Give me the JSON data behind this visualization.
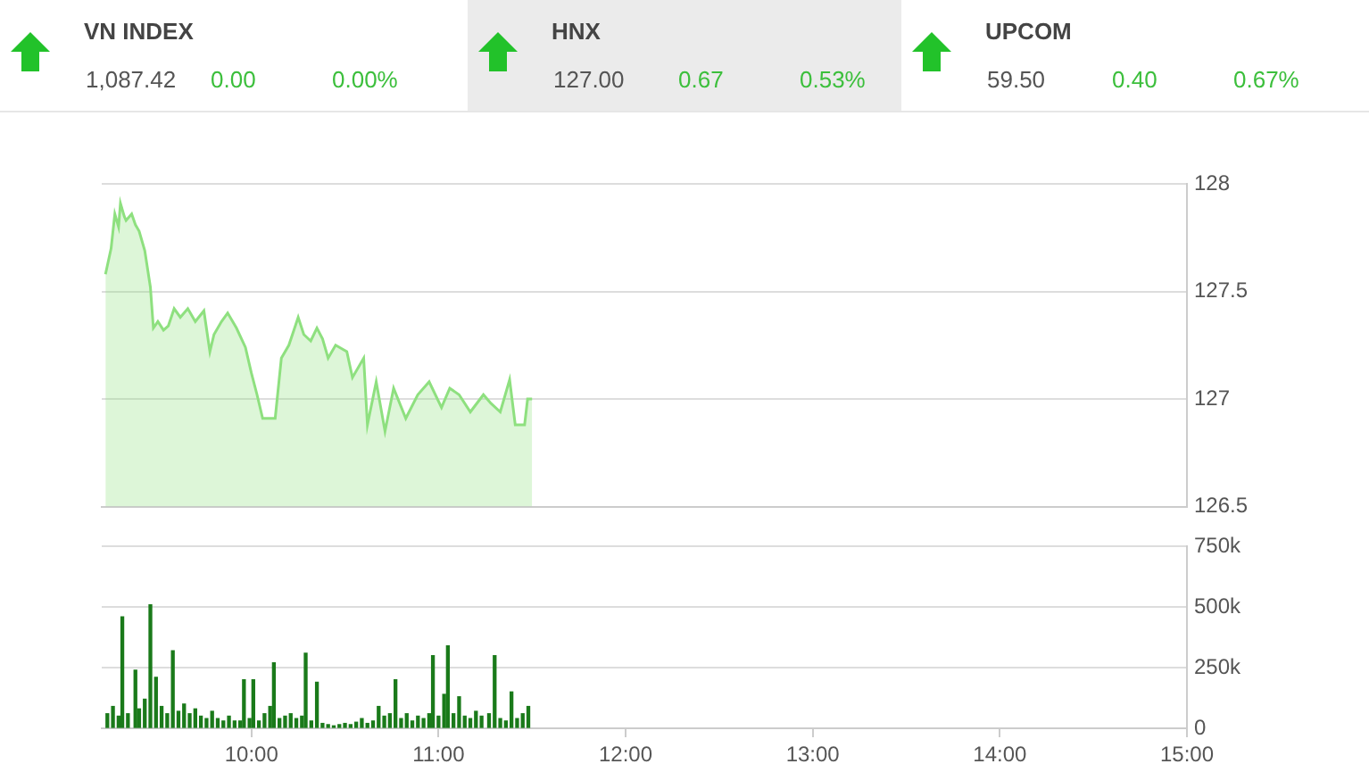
{
  "chart_data": [
    {
      "type": "other",
      "title": "VN INDEX",
      "annotations": [
        "1,087.42",
        "0.00",
        "0.00%"
      ]
    },
    {
      "type": "other",
      "title": "HNX",
      "annotations": [
        "127.00",
        "0.67",
        "0.53%"
      ]
    },
    {
      "type": "other",
      "title": "UPCOM",
      "annotations": [
        "59.50",
        "0.40",
        "0.67%"
      ]
    },
    {
      "type": "area",
      "x": [
        9.22,
        9.25,
        9.27,
        9.29,
        9.3,
        9.32,
        9.33,
        9.36,
        9.38,
        9.4,
        9.43,
        9.46,
        9.476,
        9.5,
        9.53,
        9.556,
        9.587,
        9.62,
        9.66,
        9.7,
        9.746,
        9.778,
        9.8,
        9.84,
        9.873,
        9.92,
        9.968,
        10.0,
        10.03,
        10.06,
        10.127,
        10.16,
        10.2,
        10.25,
        10.28,
        10.317,
        10.35,
        10.38,
        10.41,
        10.45,
        10.51,
        10.54,
        10.6,
        10.62,
        10.667,
        10.714,
        10.76,
        10.825,
        10.889,
        10.95,
        11.016,
        11.06,
        11.11,
        11.17,
        11.24,
        11.28,
        11.33,
        11.38,
        11.41,
        11.46,
        11.476,
        11.5
      ],
      "values": [
        127.58,
        127.7,
        127.86,
        127.8,
        127.91,
        127.85,
        127.83,
        127.86,
        127.81,
        127.78,
        127.69,
        127.52,
        127.33,
        127.36,
        127.32,
        127.34,
        127.42,
        127.38,
        127.42,
        127.36,
        127.41,
        127.22,
        127.3,
        127.36,
        127.4,
        127.33,
        127.24,
        127.12,
        127.02,
        126.91,
        126.91,
        127.19,
        127.25,
        127.38,
        127.3,
        127.27,
        127.33,
        127.28,
        127.19,
        127.25,
        127.22,
        127.1,
        127.19,
        126.88,
        127.08,
        126.85,
        127.05,
        126.91,
        127.02,
        127.08,
        126.96,
        127.05,
        127.02,
        126.94,
        127.02,
        126.98,
        126.94,
        127.09,
        126.88,
        126.88,
        127.0,
        127.0
      ],
      "color": "#8ee07f",
      "xlim": [
        9.2,
        15
      ],
      "ylim": [
        126.5,
        128
      ],
      "yticks": [
        126.5,
        127,
        127.5,
        128
      ],
      "grid": "y",
      "tick_labels": "y"
    },
    {
      "type": "bar",
      "x": [
        9.23,
        9.26,
        9.29,
        9.31,
        9.34,
        9.38,
        9.4,
        9.43,
        9.46,
        9.49,
        9.52,
        9.55,
        9.58,
        9.61,
        9.64,
        9.67,
        9.7,
        9.73,
        9.76,
        9.79,
        9.82,
        9.85,
        9.88,
        9.91,
        9.94,
        9.96,
        9.99,
        10.01,
        10.04,
        10.07,
        10.1,
        10.12,
        10.15,
        10.18,
        10.21,
        10.24,
        10.27,
        10.29,
        10.32,
        10.35,
        10.38,
        10.41,
        10.44,
        10.47,
        10.5,
        10.53,
        10.56,
        10.59,
        10.62,
        10.65,
        10.68,
        10.71,
        10.74,
        10.77,
        10.8,
        10.83,
        10.86,
        10.89,
        10.92,
        10.95,
        10.97,
        11.0,
        11.03,
        11.05,
        11.08,
        11.11,
        11.14,
        11.17,
        11.2,
        11.23,
        11.27,
        11.3,
        11.33,
        11.36,
        11.39,
        11.42,
        11.45,
        11.48
      ],
      "values": [
        60000,
        90000,
        50000,
        460000,
        60000,
        240000,
        80000,
        120000,
        510000,
        210000,
        90000,
        60000,
        320000,
        70000,
        100000,
        60000,
        80000,
        50000,
        40000,
        70000,
        40000,
        30000,
        50000,
        30000,
        30000,
        200000,
        40000,
        200000,
        30000,
        60000,
        90000,
        270000,
        40000,
        50000,
        60000,
        40000,
        50000,
        310000,
        30000,
        190000,
        20000,
        15000,
        10000,
        15000,
        20000,
        15000,
        25000,
        40000,
        20000,
        30000,
        90000,
        50000,
        60000,
        200000,
        40000,
        60000,
        30000,
        50000,
        40000,
        60000,
        300000,
        50000,
        140000,
        340000,
        60000,
        130000,
        50000,
        40000,
        70000,
        50000,
        60000,
        300000,
        40000,
        30000,
        150000,
        40000,
        60000,
        90000
      ],
      "color": "#1a7a1a",
      "xlim": [
        9.2,
        15
      ],
      "xticks": [
        {
          "value": 10,
          "label": "10:00"
        },
        {
          "value": 11,
          "label": "11:00"
        },
        {
          "value": 12,
          "label": "12:00"
        },
        {
          "value": 13,
          "label": "13:00"
        },
        {
          "value": 14,
          "label": "14:00"
        },
        {
          "value": 15,
          "label": "15:00"
        }
      ],
      "ylim": [
        0,
        750000
      ],
      "yticks": [
        0,
        {
          "value": 250000,
          "label": "250k"
        },
        {
          "value": 500000,
          "label": "500k"
        },
        {
          "value": 750000,
          "label": "750k"
        }
      ],
      "grid": "y"
    }
  ]
}
